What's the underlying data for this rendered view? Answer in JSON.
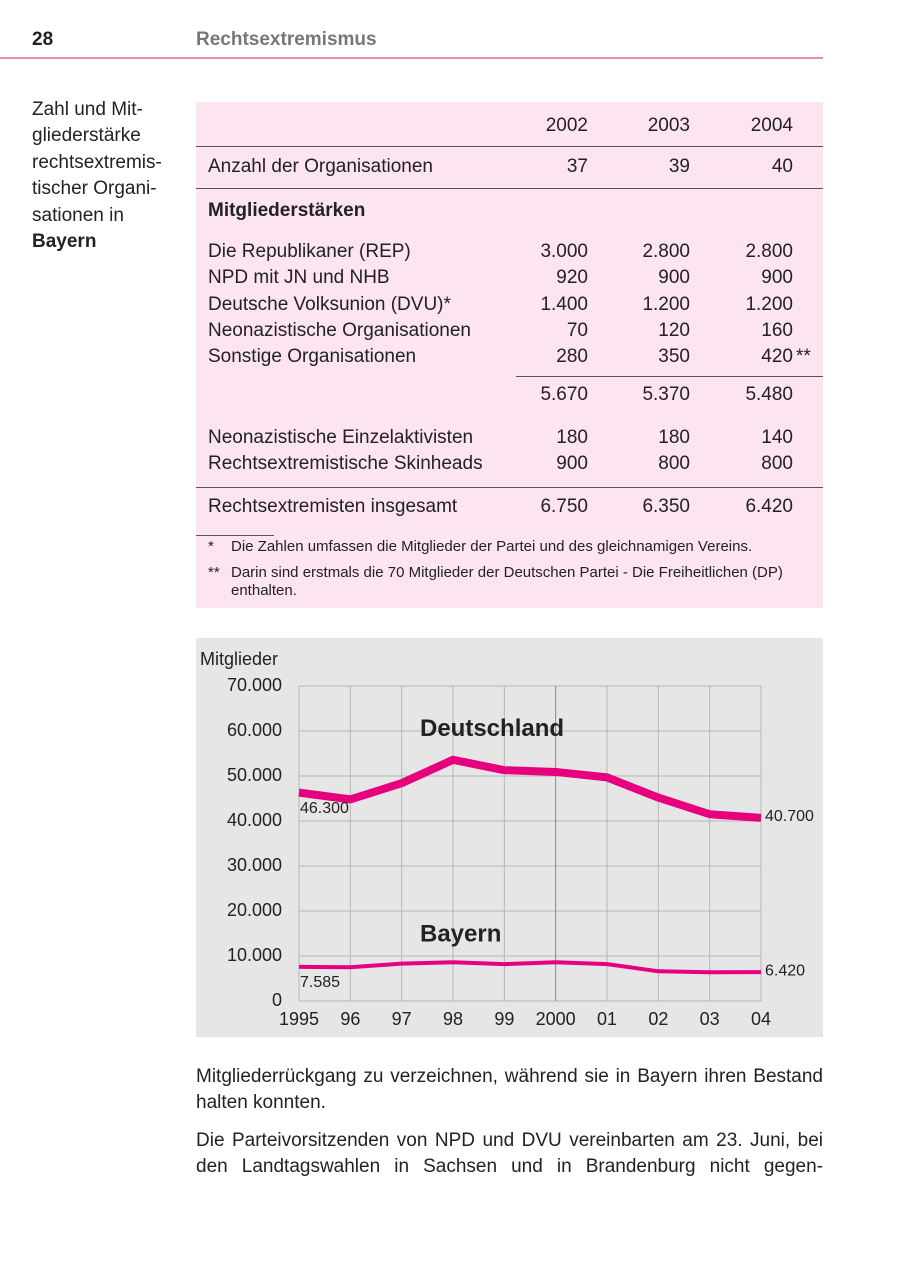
{
  "header": {
    "page": "28",
    "section": "Rechtsextremismus"
  },
  "sidebar": {
    "lines": [
      "Zahl und Mit-",
      "gliederstärke",
      "rechtsextremis-",
      "tischer Organi-",
      "sationen in"
    ],
    "bold": "Bayern"
  },
  "table": {
    "years": [
      "2002",
      "2003",
      "2004"
    ],
    "count": {
      "label": "Anzahl der Organisationen",
      "values": [
        "37",
        "39",
        "40"
      ]
    },
    "section": "Mitgliederstärken",
    "orgs": [
      {
        "label": "Die Republikaner (REP)",
        "values": [
          "3.000",
          "2.800",
          "2.800"
        ]
      },
      {
        "label": "NPD mit JN und NHB",
        "values": [
          "920",
          "900",
          "900"
        ]
      },
      {
        "label": "Deutsche Volksunion (DVU)*",
        "values": [
          "1.400",
          "1.200",
          "1.200"
        ]
      },
      {
        "label": "Neonazistische Organisationen",
        "values": [
          "70",
          "120",
          "160"
        ]
      },
      {
        "label": "Sonstige Organisationen",
        "values": [
          "280",
          "350",
          "420"
        ],
        "mark": "**"
      }
    ],
    "subtotal": [
      "5.670",
      "5.370",
      "5.480"
    ],
    "others": [
      {
        "label": "Neonazistische Einzelaktivisten",
        "values": [
          "180",
          "180",
          "140"
        ]
      },
      {
        "label": "Rechtsextremistische Skinheads",
        "values": [
          "900",
          "800",
          "800"
        ]
      }
    ],
    "total": {
      "label": "Rechtsextremisten insgesamt",
      "values": [
        "6.750",
        "6.350",
        "6.420"
      ]
    },
    "footnotes": [
      {
        "marker": "*",
        "text": "Die Zahlen umfassen die Mitglieder der Partei und des gleichnamigen Vereins."
      },
      {
        "marker": "**",
        "text": "Darin sind erstmals die 70 Mitglieder der Deutschen Partei - Die Freiheitlichen (DP) enthalten."
      }
    ]
  },
  "chart_data": {
    "type": "line",
    "y_label": "Mitglieder",
    "categories": [
      "1995",
      "96",
      "97",
      "98",
      "99",
      "2000",
      "01",
      "02",
      "03",
      "04"
    ],
    "series": [
      {
        "name": "Deutschland",
        "color": "#e6007e",
        "values": [
          46300,
          44800,
          48400,
          53600,
          51300,
          50900,
          49700,
          45200,
          41500,
          40700
        ],
        "value_labels": [
          "46.300",
          null,
          null,
          null,
          null,
          null,
          null,
          null,
          null,
          "40.700"
        ]
      },
      {
        "name": "Bayern",
        "color": "#e6007e",
        "values": [
          7585,
          7500,
          8300,
          8600,
          8200,
          8600,
          8200,
          6600,
          6400,
          6420
        ],
        "value_labels": [
          "7.585",
          null,
          null,
          null,
          null,
          null,
          null,
          null,
          null,
          "6.420"
        ]
      }
    ],
    "ylim": [
      0,
      70000
    ],
    "yticks": [
      0,
      {
        "value": 10000,
        "label": "10.000"
      },
      {
        "value": 20000,
        "label": "20.000"
      },
      {
        "value": 30000,
        "label": "30.000"
      },
      {
        "value": 40000,
        "label": "40.000"
      },
      {
        "value": 50000,
        "label": "50.000"
      },
      {
        "value": 60000,
        "label": "60.000"
      },
      {
        "value": 70000,
        "label": "70.000"
      }
    ],
    "grid": true
  },
  "body": [
    "Mitgliederrückgang zu verzeichnen, während sie in Bayern ihren Bestand halten konnten.",
    "Die Parteivorsitzenden von NPD und DVU vereinbarten am 23. Juni, bei den Landtagswahlen in Sachsen und in Brandenburg nicht gegen-"
  ]
}
